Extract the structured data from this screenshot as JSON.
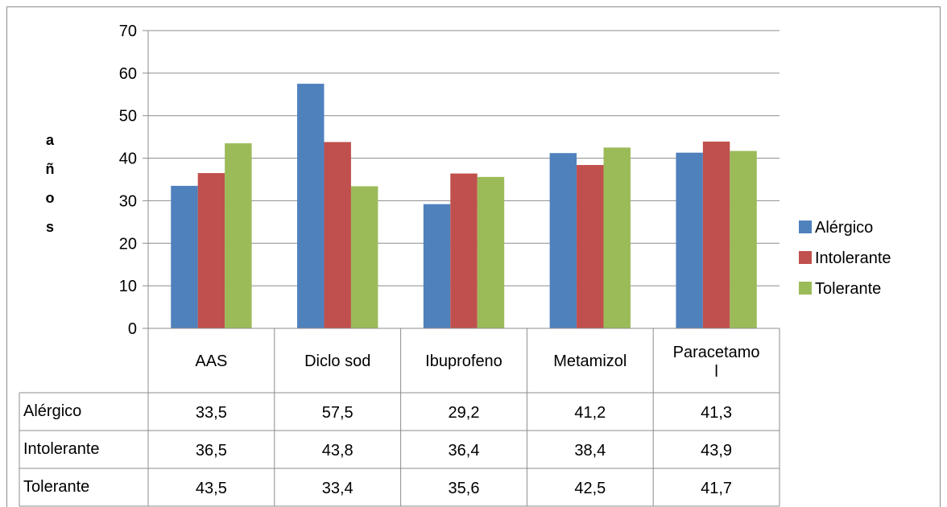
{
  "chart_data": {
    "type": "bar",
    "title": "",
    "xlabel": "",
    "ylabel": "años",
    "ylim": [
      0,
      70
    ],
    "yticks": [
      0,
      10,
      20,
      30,
      40,
      50,
      60,
      70
    ],
    "grid": true,
    "legend_position": "right",
    "categories": [
      "AAS",
      "Diclo sod",
      "Ibuprofeno",
      "Metamizol",
      "Paracetamol"
    ],
    "category_display": [
      [
        "AAS"
      ],
      [
        "Diclo sod"
      ],
      [
        "Ibuprofeno"
      ],
      [
        "Metamizol"
      ],
      [
        "Paracetamo",
        "l"
      ]
    ],
    "series": [
      {
        "name": "Alérgico",
        "color": "#4f81bd",
        "values": [
          33.5,
          57.5,
          29.2,
          41.2,
          41.3
        ]
      },
      {
        "name": "Intolerante",
        "color": "#c0504d",
        "values": [
          36.5,
          43.8,
          36.4,
          38.4,
          43.9
        ]
      },
      {
        "name": "Tolerante",
        "color": "#9bbb59",
        "values": [
          43.5,
          33.4,
          35.6,
          42.5,
          41.7
        ]
      }
    ],
    "table_values": [
      [
        "33,5",
        "57,5",
        "29,2",
        "41,2",
        "41,3"
      ],
      [
        "36,5",
        "43,8",
        "36,4",
        "38,4",
        "43,9"
      ],
      [
        "43,5",
        "33,4",
        "35,6",
        "42,5",
        "41,7"
      ]
    ]
  }
}
